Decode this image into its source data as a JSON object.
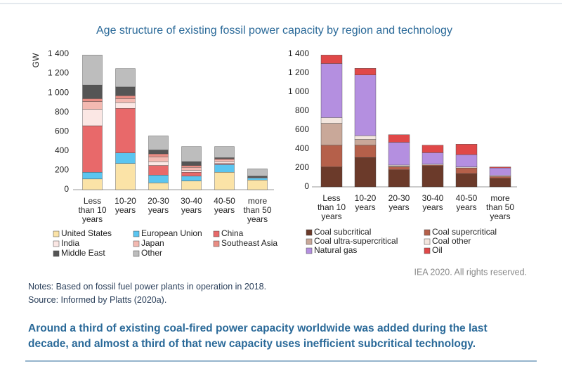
{
  "title": "Age structure of existing fossil power capacity by region and technology",
  "chart_data": [
    {
      "type": "bar",
      "stacked": true,
      "y_label": "GW",
      "categories": [
        "Less than 10 years",
        "10-20 years",
        "20-30 years",
        "30-40 years",
        "40-50 years",
        "more than 50 years"
      ],
      "series": [
        {
          "name": "United States",
          "color": "#fbe3a7",
          "values": [
            110,
            270,
            70,
            90,
            180,
            100
          ]
        },
        {
          "name": "European Union",
          "color": "#5bc5f0",
          "values": [
            70,
            110,
            80,
            50,
            80,
            20
          ]
        },
        {
          "name": "China",
          "color": "#e8696a",
          "values": [
            480,
            460,
            100,
            40,
            10,
            0
          ]
        },
        {
          "name": "India",
          "color": "#fbe7e4",
          "values": [
            170,
            60,
            40,
            20,
            20,
            5
          ]
        },
        {
          "name": "Japan",
          "color": "#f3b9b1",
          "values": [
            80,
            40,
            50,
            30,
            20,
            5
          ]
        },
        {
          "name": "Southeast Asia",
          "color": "#e98d84",
          "values": [
            30,
            30,
            30,
            20,
            10,
            0
          ]
        },
        {
          "name": "Middle East",
          "color": "#555555",
          "values": [
            140,
            90,
            40,
            40,
            10,
            10
          ]
        },
        {
          "name": "Other",
          "color": "#bdbdbd",
          "values": [
            310,
            190,
            145,
            155,
            115,
            75
          ]
        }
      ],
      "ylim": [
        0,
        1400
      ],
      "yticks": [
        0,
        200,
        400,
        600,
        800,
        {
          "value": 1000,
          "label": "1 000"
        },
        {
          "value": 1200,
          "label": "1 200"
        },
        {
          "value": 1400,
          "label": "1 400"
        }
      ]
    },
    {
      "type": "bar",
      "stacked": true,
      "categories": [
        "Less than 10 years",
        "10-20 years",
        "20-30 years",
        "30-40 years",
        "40-50 years",
        "more than 50 years"
      ],
      "series": [
        {
          "name": "Coal subcritical",
          "color": "#6b3a2a",
          "values": [
            210,
            310,
            180,
            220,
            140,
            90
          ]
        },
        {
          "name": "Coal supercritical",
          "color": "#b5604a",
          "values": [
            230,
            130,
            30,
            10,
            60,
            20
          ]
        },
        {
          "name": "Coal ultra-supercritical",
          "color": "#c9a899",
          "values": [
            230,
            60,
            10,
            0,
            0,
            0
          ]
        },
        {
          "name": "Coal other",
          "color": "#f3e6de",
          "values": [
            60,
            40,
            10,
            10,
            10,
            10
          ]
        },
        {
          "name": "Natural gas",
          "color": "#b48fe0",
          "values": [
            570,
            640,
            240,
            120,
            130,
            80
          ]
        },
        {
          "name": "Oil",
          "color": "#e04848",
          "values": [
            90,
            70,
            80,
            80,
            110,
            10
          ]
        }
      ],
      "ylim": [
        0,
        1400
      ],
      "yticks": [
        0,
        200,
        400,
        600,
        800,
        {
          "value": 1000,
          "label": "1 000"
        },
        {
          "value": 1200,
          "label": "1 200"
        },
        {
          "value": 1400,
          "label": "1 400"
        }
      ]
    }
  ],
  "copyright": "IEA 2020. All rights reserved.",
  "notes": "Notes: Based on fossil fuel power plants in operation in 2018.",
  "source": "Source: Informed by Platts (2020a).",
  "caption": "Around a third of existing coal-fired power capacity worldwide was added during the last decade, and almost a third of that new capacity uses inefficient subcritical technology."
}
